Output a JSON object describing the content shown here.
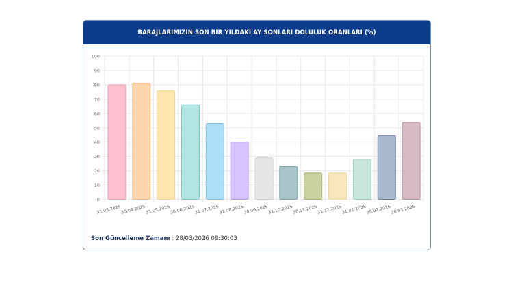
{
  "chart_data": {
    "type": "bar",
    "title": "BARAJLARIMIZIN SON BİR YILDAKİ AY SONLARI DOLULUK ORANLARI (%)",
    "xlabel": "",
    "ylabel": "",
    "ylim": [
      0,
      100
    ],
    "yticks": [
      0,
      10,
      20,
      30,
      40,
      50,
      60,
      70,
      80,
      90,
      100
    ],
    "grid": true,
    "categories": [
      "31.03.2025",
      "30.04.2025",
      "31.05.2025",
      "30.06.2025",
      "31.07.2025",
      "31.08.2025",
      "30.09.2025",
      "31.10.2025",
      "30.11.2025",
      "31.12.2025",
      "31.01.2026",
      "28.02.2026",
      "28.03.2026"
    ],
    "values": [
      80,
      81,
      76,
      66,
      53,
      40,
      29,
      23,
      18.5,
      18.5,
      28,
      44.6,
      53.7
    ],
    "colors": [
      "#ffc1d0",
      "#ffd6ab",
      "#ffe6ac",
      "#b3e5e3",
      "#ace0f8",
      "#d7c4fc",
      "#e6e6e8",
      "#a9c5cc",
      "#cbd3a0",
      "#f8e8bd",
      "#c7e7dc",
      "#a8b8cc",
      "#d8bac6"
    ],
    "borders": [
      "#f4a0b6",
      "#f5b98a",
      "#f2d48c",
      "#7fcac8",
      "#7fbfe6",
      "#b59ae6",
      "#cfcfd2",
      "#7f9fa8",
      "#aab277",
      "#ecd79c",
      "#9ccdbd",
      "#6d7f98",
      "#b6929f"
    ]
  },
  "footer": {
    "label": "Son Güncelleme Zamanı",
    "separator": " : ",
    "value": "28/03/2026 09:30:03"
  }
}
